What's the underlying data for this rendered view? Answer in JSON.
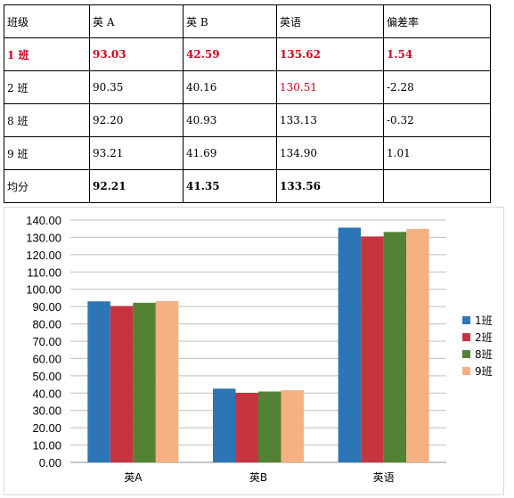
{
  "table": {
    "headers": [
      "班级",
      "英 A",
      "英 B",
      "英语",
      "偏差率"
    ],
    "rows": [
      {
        "cls": "row-1",
        "cells": [
          "1 班",
          "93.03",
          "42.59",
          "135.62",
          "1.54"
        ]
      },
      {
        "cls": "row-2",
        "cells": [
          "2 班",
          "90.35",
          "40.16",
          "130.51",
          "-2.28"
        ]
      },
      {
        "cls": "row-8",
        "cells": [
          "8 班",
          "92.20",
          "40.93",
          "133.13",
          "-0.32"
        ]
      },
      {
        "cls": "row-9",
        "cells": [
          "9 班",
          "93.21",
          "41.69",
          "134.90",
          "1.01"
        ]
      },
      {
        "cls": "row-avg",
        "cells": [
          "均分",
          "92.21",
          "41.35",
          "133.56",
          ""
        ]
      }
    ]
  },
  "colors": {
    "accent_red": "#d0021b"
  },
  "chart_data": {
    "type": "bar",
    "categories": [
      "英A",
      "英B",
      "英语"
    ],
    "series": [
      {
        "name": "1班",
        "color": "#2e75b6",
        "values": [
          93.03,
          42.59,
          135.62
        ]
      },
      {
        "name": "2班",
        "color": "#c5343f",
        "values": [
          90.35,
          40.16,
          130.51
        ]
      },
      {
        "name": "8班",
        "color": "#548235",
        "values": [
          92.2,
          40.93,
          133.13
        ]
      },
      {
        "name": "9班",
        "color": "#f4b183",
        "values": [
          93.21,
          41.69,
          134.9
        ]
      }
    ],
    "ylim": [
      0,
      140
    ],
    "yticks": [
      "0.00",
      "10.00",
      "20.00",
      "30.00",
      "40.00",
      "50.00",
      "60.00",
      "70.00",
      "80.00",
      "90.00",
      "100.00",
      "110.00",
      "120.00",
      "130.00",
      "140.00"
    ],
    "grid": true,
    "legend": "right"
  }
}
